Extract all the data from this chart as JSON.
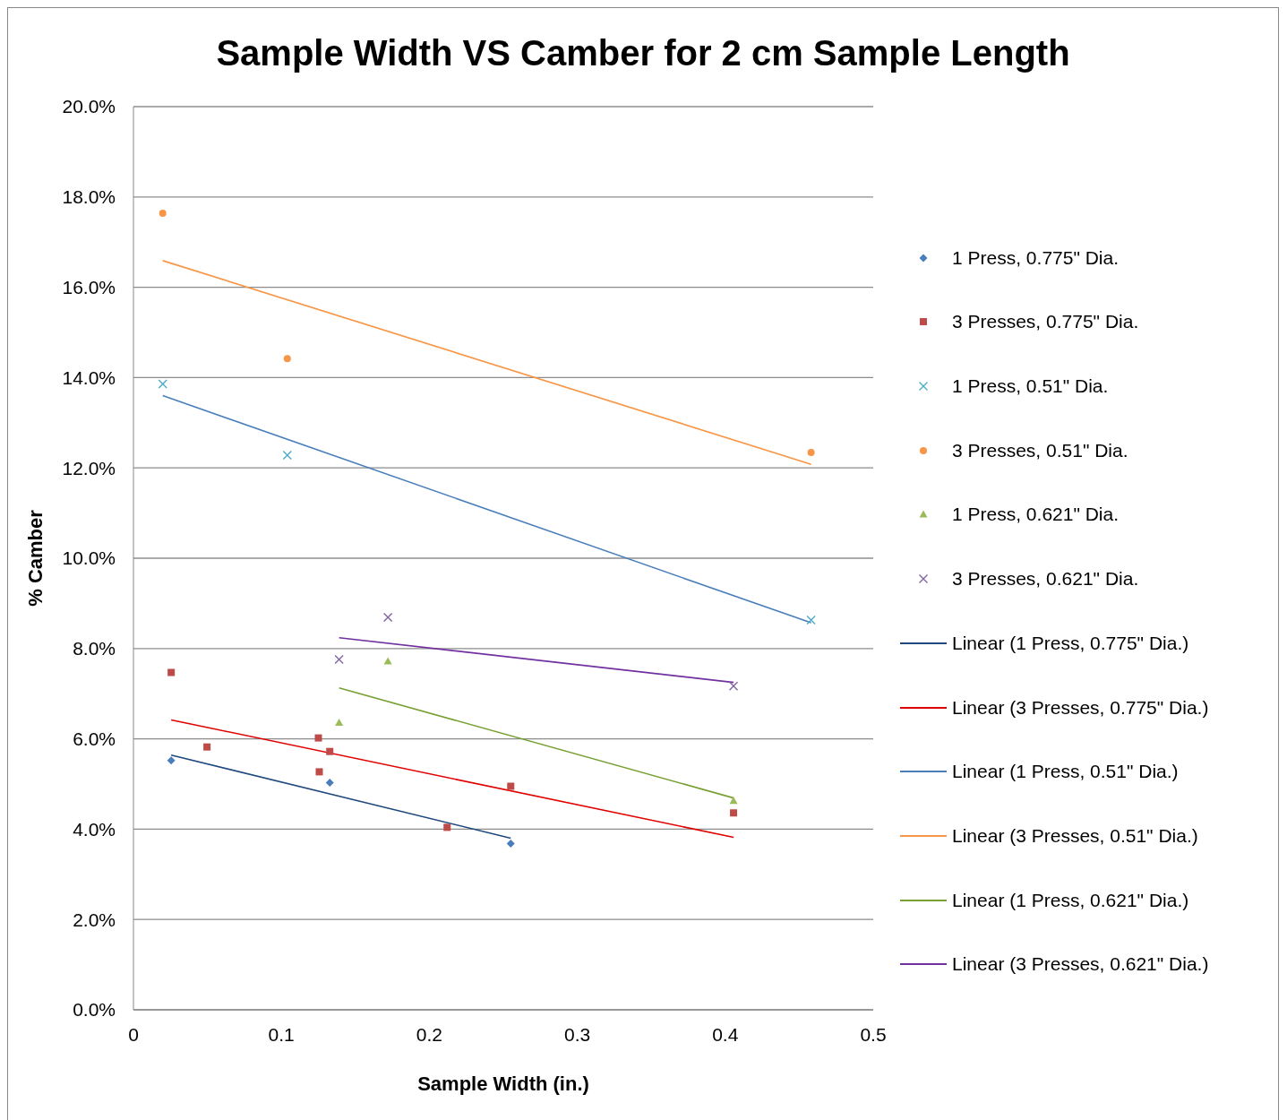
{
  "chart_data": {
    "type": "scatter",
    "title": "Sample Width VS Camber for 2 cm Sample Length",
    "xlabel": "Sample Width (in.)",
    "ylabel": "% Camber",
    "xlim": [
      0,
      0.5
    ],
    "xticks": [
      0,
      0.1,
      0.2,
      0.3,
      0.4,
      0.5
    ],
    "ylim": [
      0,
      20
    ],
    "yticks": [
      {
        "value": 0,
        "label": "0.0%"
      },
      {
        "value": 2,
        "label": "2.0%"
      },
      {
        "value": 4,
        "label": "4.0%"
      },
      {
        "value": 6,
        "label": "6.0%"
      },
      {
        "value": 8,
        "label": "8.0%"
      },
      {
        "value": 10,
        "label": "10.0%"
      },
      {
        "value": 12,
        "label": "12.0%"
      },
      {
        "value": 14,
        "label": "14.0%"
      },
      {
        "value": 16,
        "label": "16.0%"
      },
      {
        "value": 18,
        "label": "18.0%"
      },
      {
        "value": 20,
        "label": "20.0%"
      }
    ],
    "grid": "y",
    "legend": "right",
    "series": [
      {
        "name": "1 Press, 0.775\" Dia.",
        "marker": "diamond",
        "color": "#4a7ebb",
        "x": [
          0.0255,
          0.1327,
          0.255
        ],
        "values": [
          5.52,
          5.03,
          3.68
        ]
      },
      {
        "name": "3 Presses, 0.775\" Dia.",
        "marker": "square",
        "color": "#be4b48",
        "x": [
          0.0255,
          0.0497,
          0.125,
          0.1256,
          0.1327,
          0.212,
          0.255,
          0.4056
        ],
        "values": [
          7.47,
          5.82,
          6.02,
          5.27,
          5.72,
          4.04,
          4.95,
          4.36
        ]
      },
      {
        "name": "1 Press, 0.51\" Dia.",
        "marker": "cross",
        "color": "#4bacc6",
        "x": [
          0.0198,
          0.104,
          0.458
        ],
        "values": [
          13.86,
          12.28,
          8.63
        ]
      },
      {
        "name": "3 Presses, 0.51\" Dia.",
        "marker": "circle",
        "color": "#f79646",
        "x": [
          0.0198,
          0.104,
          0.458
        ],
        "values": [
          17.64,
          14.42,
          12.34
        ]
      },
      {
        "name": "1 Press, 0.621\" Dia.",
        "marker": "triangle",
        "color": "#9bbb59",
        "x": [
          0.139,
          0.172,
          0.4056
        ],
        "values": [
          6.36,
          7.72,
          4.63
        ]
      },
      {
        "name": "3 Presses, 0.621\" Dia.",
        "marker": "cross",
        "color": "#8064a2",
        "x": [
          0.139,
          0.172,
          0.4056
        ],
        "values": [
          7.76,
          8.69,
          7.17
        ]
      },
      {
        "name": "Linear (1 Press, 0.775\" Dia.)",
        "type": "line",
        "marker": "none",
        "line_style": "solid",
        "color": "#1f497d",
        "x": [
          0.0255,
          0.255
        ],
        "values": [
          5.64,
          3.8
        ]
      },
      {
        "name": "Linear (3 Presses, 0.775\" Dia.)",
        "type": "line",
        "marker": "none",
        "line_style": "solid",
        "color": "#e00000",
        "x": [
          0.0255,
          0.4056
        ],
        "values": [
          6.42,
          3.82
        ]
      },
      {
        "name": "Linear (1 Press, 0.51\" Dia.)",
        "type": "line",
        "marker": "none",
        "line_style": "solid",
        "color": "#4a7ebb",
        "x": [
          0.0198,
          0.458
        ],
        "values": [
          13.6,
          8.57
        ]
      },
      {
        "name": "Linear (3 Presses, 0.51\" Dia.)",
        "type": "line",
        "marker": "none",
        "line_style": "solid",
        "color": "#f79646",
        "x": [
          0.0198,
          0.458
        ],
        "values": [
          16.59,
          12.08
        ]
      },
      {
        "name": "Linear (1 Press, 0.621\" Dia.)",
        "type": "line",
        "marker": "none",
        "line_style": "solid",
        "color": "#77a033",
        "x": [
          0.139,
          0.4056
        ],
        "values": [
          7.13,
          4.69
        ]
      },
      {
        "name": "Linear (3 Presses, 0.621\" Dia.)",
        "type": "line",
        "marker": "none",
        "line_style": "solid",
        "color": "#7030a0",
        "x": [
          0.139,
          0.4056
        ],
        "values": [
          8.24,
          7.25
        ]
      }
    ]
  }
}
